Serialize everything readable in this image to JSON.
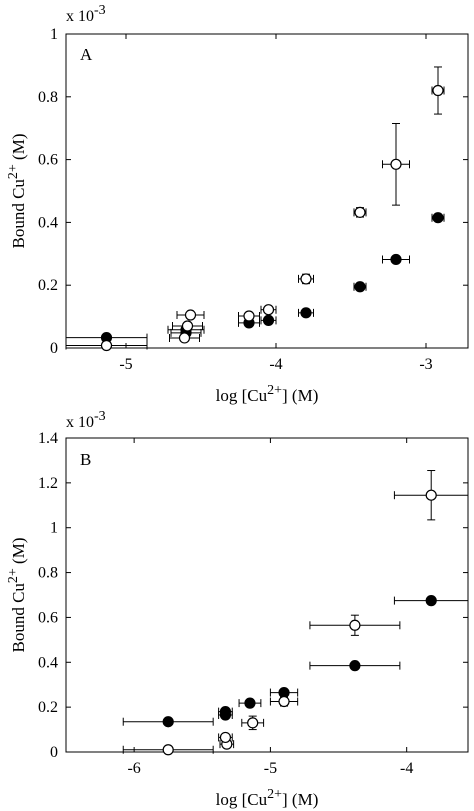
{
  "chart_data": [
    {
      "type": "scatter",
      "panel": "A",
      "scale_label": "x 10",
      "scale_exp": "-3",
      "xlabel": "log [Cu",
      "xlabel_sup": "2+",
      "xlabel_suffix": "] (M)",
      "ylabel": "Bound Cu",
      "ylabel_sup": "2+",
      "ylabel_suffix": " (M)",
      "xlim": [
        -5.4,
        -2.72
      ],
      "ylim": [
        0,
        1
      ],
      "xticks": [
        -5,
        -4,
        -3
      ],
      "xtick_labels": [
        "-5",
        "-4",
        "-3"
      ],
      "yticks": [
        0,
        0.2,
        0.4,
        0.6,
        0.8,
        1
      ],
      "ytick_labels": [
        "0",
        "0.2",
        "0.4",
        "0.6",
        "0.8",
        "1"
      ],
      "series": [
        {
          "marker": "filled",
          "points": [
            {
              "x": -5.13,
              "y": 0.033,
              "xerr": 0.27,
              "yerr": 0.005
            },
            {
              "x": -4.6,
              "y": 0.058,
              "xerr": 0.12,
              "yerr": 0.005
            },
            {
              "x": -4.6,
              "y": 0.048,
              "xerr": 0.1,
              "yerr": 0.005
            },
            {
              "x": -4.18,
              "y": 0.08,
              "xerr": 0.07,
              "yerr": 0.01
            },
            {
              "x": -4.05,
              "y": 0.088,
              "xerr": 0.05,
              "yerr": 0.01
            },
            {
              "x": -3.8,
              "y": 0.112,
              "xerr": 0.05,
              "yerr": 0.01
            },
            {
              "x": -3.44,
              "y": 0.195,
              "xerr": 0.04,
              "yerr": 0.01
            },
            {
              "x": -3.2,
              "y": 0.282,
              "xerr": 0.09,
              "yerr": 0.01
            },
            {
              "x": -2.92,
              "y": 0.415,
              "xerr": 0.04,
              "yerr": 0.01
            }
          ]
        },
        {
          "marker": "open",
          "points": [
            {
              "x": -5.13,
              "y": 0.008,
              "xerr": 0.27,
              "yerr": 0.005
            },
            {
              "x": -4.61,
              "y": 0.032,
              "xerr": 0.1,
              "yerr": 0.005
            },
            {
              "x": -4.59,
              "y": 0.07,
              "xerr": 0.1,
              "yerr": 0.01
            },
            {
              "x": -4.57,
              "y": 0.105,
              "xerr": 0.09,
              "yerr": 0.01
            },
            {
              "x": -4.18,
              "y": 0.102,
              "xerr": 0.07,
              "yerr": 0.01
            },
            {
              "x": -4.05,
              "y": 0.122,
              "xerr": 0.05,
              "yerr": 0.01
            },
            {
              "x": -3.8,
              "y": 0.22,
              "xerr": 0.05,
              "yerr": 0.015
            },
            {
              "x": -3.44,
              "y": 0.432,
              "xerr": 0.04,
              "yerr": 0.015
            },
            {
              "x": -3.2,
              "y": 0.585,
              "xerr": 0.09,
              "yerr": 0.13
            },
            {
              "x": -2.92,
              "y": 0.82,
              "xerr": 0.04,
              "yerr": 0.075
            }
          ]
        }
      ]
    },
    {
      "type": "scatter",
      "panel": "B",
      "scale_label": "x 10",
      "scale_exp": "-3",
      "xlabel": "log [Cu",
      "xlabel_sup": "2+",
      "xlabel_suffix": "] (M)",
      "ylabel": "Bound Cu",
      "ylabel_sup": "2+",
      "ylabel_suffix": " (M)",
      "xlim": [
        -6.5,
        -3.55
      ],
      "ylim": [
        0,
        1.4
      ],
      "xticks": [
        -6,
        -5,
        -4
      ],
      "xtick_labels": [
        "-6",
        "-5",
        "-4"
      ],
      "yticks": [
        0,
        0.2,
        0.4,
        0.6,
        0.8,
        1,
        1.2,
        1.4
      ],
      "ytick_labels": [
        "0",
        "0.2",
        "0.4",
        "0.6",
        "0.8",
        "1",
        "1.2",
        "1.4"
      ],
      "series": [
        {
          "marker": "filled",
          "points": [
            {
              "x": -5.75,
              "y": 0.135,
              "xerr": 0.33,
              "yerr": 0.005
            },
            {
              "x": -5.33,
              "y": 0.165,
              "xerr": 0.05,
              "yerr": 0.01
            },
            {
              "x": -5.33,
              "y": 0.18,
              "xerr": 0.05,
              "yerr": 0.01
            },
            {
              "x": -5.15,
              "y": 0.218,
              "xerr": 0.08,
              "yerr": 0.01
            },
            {
              "x": -4.9,
              "y": 0.265,
              "xerr": 0.1,
              "yerr": 0.01
            },
            {
              "x": -4.38,
              "y": 0.385,
              "xerr": 0.33,
              "yerr": 0.01
            },
            {
              "x": -3.82,
              "y": 0.675,
              "xerr": 0.27,
              "yerr": 0.01
            }
          ]
        },
        {
          "marker": "open",
          "points": [
            {
              "x": -5.75,
              "y": 0.01,
              "xerr": 0.33,
              "yerr": 0.005
            },
            {
              "x": -5.32,
              "y": 0.035,
              "xerr": 0.05,
              "yerr": 0.01
            },
            {
              "x": -5.33,
              "y": 0.065,
              "xerr": 0.05,
              "yerr": 0.01
            },
            {
              "x": -5.13,
              "y": 0.13,
              "xerr": 0.08,
              "yerr": 0.03
            },
            {
              "x": -4.9,
              "y": 0.225,
              "xerr": 0.1,
              "yerr": 0.02
            },
            {
              "x": -4.38,
              "y": 0.565,
              "xerr": 0.33,
              "yerr": 0.045
            },
            {
              "x": -3.82,
              "y": 1.145,
              "xerr": 0.27,
              "yerr": 0.11
            }
          ]
        }
      ]
    }
  ]
}
